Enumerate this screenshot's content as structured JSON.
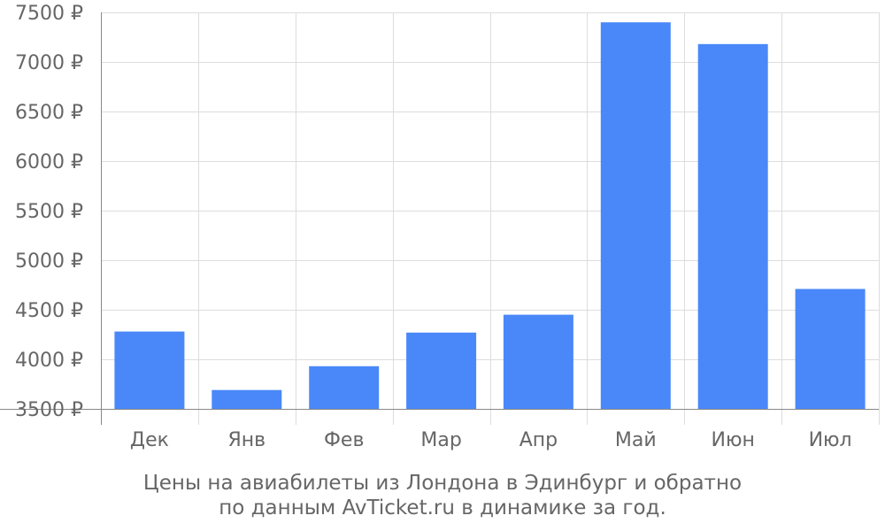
{
  "chart_data": {
    "type": "bar",
    "categories": [
      "Дек",
      "Янв",
      "Фев",
      "Мар",
      "Апр",
      "Май",
      "Июн",
      "Июл"
    ],
    "values": [
      4280,
      3690,
      3930,
      4270,
      4450,
      7400,
      7180,
      4710
    ],
    "ylim": [
      3500,
      7500
    ],
    "yticks": [
      3500,
      4000,
      4500,
      5000,
      5500,
      6000,
      6500,
      7000,
      7500
    ],
    "currency_suffix": " ₽",
    "grid": true,
    "bar_color": "#4a88f9"
  },
  "caption": {
    "line1": "Цены на авиабилеты из Лондона в Эдинбург и обратно",
    "line2": "по данным AvTicket.ru в динамике за год."
  },
  "colors": {
    "grid": "#dddddd",
    "axis": "#888888",
    "text": "#666666"
  }
}
